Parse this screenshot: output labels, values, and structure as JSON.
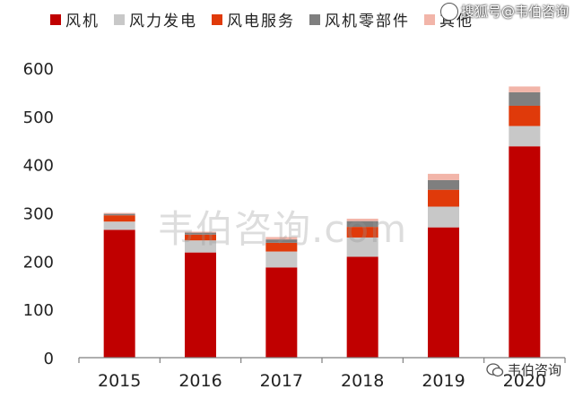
{
  "chart_data": {
    "type": "bar",
    "stacked": true,
    "categories": [
      "2015",
      "2016",
      "2017",
      "2018",
      "2019",
      "2020"
    ],
    "series": [
      {
        "name": "风机",
        "color": "#C00000",
        "values": [
          265,
          218,
          187,
          209,
          270,
          438
        ]
      },
      {
        "name": "风力发电",
        "color": "#C8C8C8",
        "values": [
          17,
          25,
          33,
          40,
          43,
          42
        ]
      },
      {
        "name": "风电服务",
        "color": "#E03A0A",
        "values": [
          13,
          12,
          18,
          22,
          35,
          42
        ]
      },
      {
        "name": "风机零部件",
        "color": "#7F7F7F",
        "values": [
          3,
          4,
          7,
          12,
          20,
          28
        ]
      },
      {
        "name": "其他",
        "color": "#F2B5A9",
        "values": [
          2,
          2,
          5,
          5,
          13,
          12
        ]
      }
    ],
    "yticks": [
      0,
      100,
      200,
      300,
      400,
      500,
      600
    ],
    "ylim": [
      0,
      600
    ],
    "xlabel": "",
    "ylabel": "",
    "legend_position": "top",
    "grid": false
  },
  "watermarks": {
    "top_right": "搜狐号@韦伯咨询",
    "center": "韦伯咨询.com",
    "bottom_right": "韦伯咨询"
  }
}
